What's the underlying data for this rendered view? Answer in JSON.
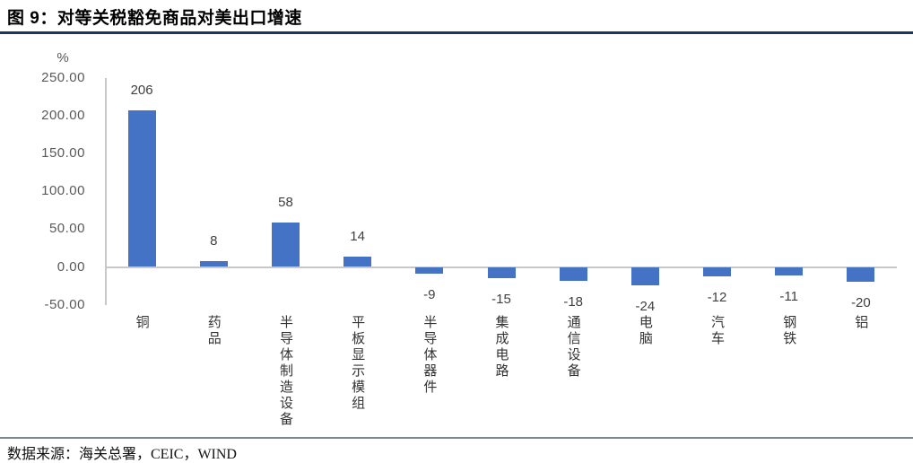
{
  "header": {
    "title": "图 9：对等关税豁免商品对美出口增速"
  },
  "footer": {
    "source": "数据来源：海关总署，CEIC，WIND"
  },
  "chart_data": {
    "type": "bar",
    "title": "对等关税豁免商品对美出口增速",
    "categories": [
      "铜",
      "药品",
      "半导体制造设备",
      "平板显示模组",
      "半导体器件",
      "集成电路",
      "通信设备",
      "电脑",
      "汽车",
      "钢铁",
      "铝"
    ],
    "values": [
      206,
      8,
      58,
      14,
      -9,
      -15,
      -18,
      -24,
      -12,
      -11,
      -20
    ],
    "xlabel": "",
    "ylabel": "%",
    "ytick_labels": [
      "250.00",
      "200.00",
      "150.00",
      "100.00",
      "50.00",
      "0.00",
      "-50.00"
    ],
    "ylim": [
      -50,
      250
    ],
    "grid": false,
    "legend": false,
    "data_labels": true,
    "bar_color": "#4472C4",
    "axis_color": "#C8C8C8"
  }
}
